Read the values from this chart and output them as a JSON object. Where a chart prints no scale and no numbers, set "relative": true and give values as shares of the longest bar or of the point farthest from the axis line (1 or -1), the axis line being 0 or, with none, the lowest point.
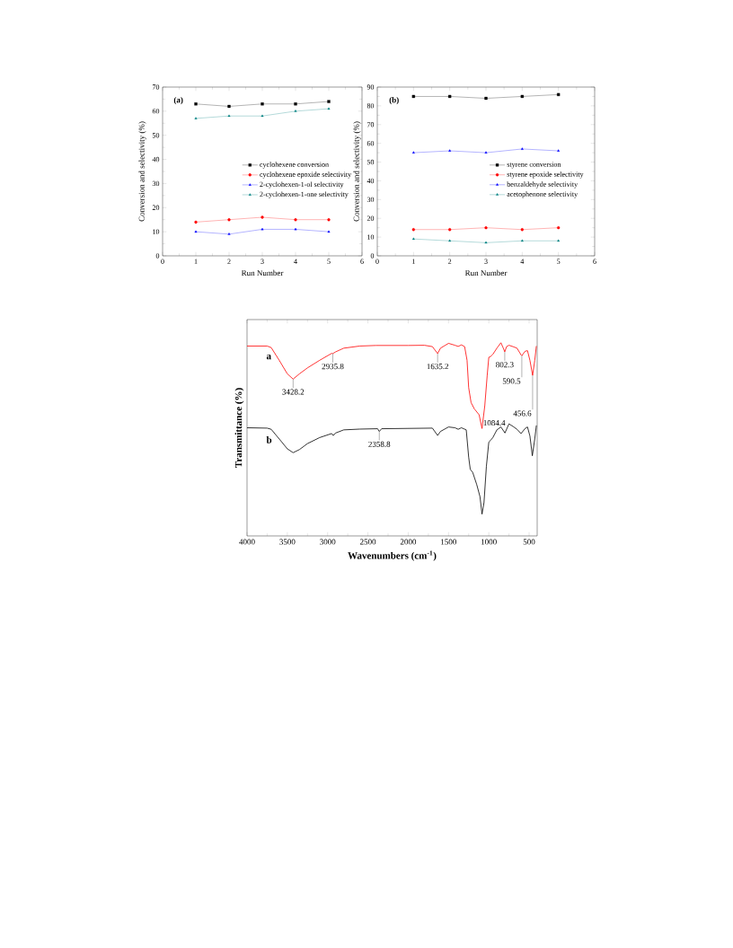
{
  "chart_data": [
    {
      "type": "line",
      "title": "(a)",
      "xlabel": "Run Number",
      "ylabel": "Conversion and selectivity (%)",
      "x": [
        1,
        2,
        3,
        4,
        5
      ],
      "xlim": [
        0,
        6
      ],
      "xticks": [
        0,
        1,
        2,
        3,
        4,
        5,
        6
      ],
      "ylim": [
        0,
        70
      ],
      "yticks": [
        0,
        10,
        20,
        30,
        40,
        50,
        60,
        70
      ],
      "legend": "right",
      "series": [
        {
          "name": "cyclohexene conversion",
          "color": "#000000",
          "marker": "square",
          "values": [
            63,
            62,
            63,
            63,
            64
          ]
        },
        {
          "name": "cyclohexene epoxide selectivity",
          "color": "#ff0000",
          "marker": "circle",
          "values": [
            14,
            15,
            16,
            15,
            15
          ]
        },
        {
          "name": "2-cyclohexen-1-ol selectivity",
          "color": "#0000ff",
          "marker": "triangle",
          "values": [
            10,
            9,
            11,
            11,
            10
          ]
        },
        {
          "name": "2-cyclohexen-1-one selectivity",
          "color": "#008080",
          "marker": "triangle",
          "values": [
            57,
            58,
            58,
            60,
            61
          ]
        }
      ]
    },
    {
      "type": "line",
      "title": "(b)",
      "xlabel": "Run Number",
      "ylabel": "Conversion and selectivity (%)",
      "x": [
        1,
        2,
        3,
        4,
        5
      ],
      "xlim": [
        0,
        6
      ],
      "xticks": [
        0,
        1,
        2,
        3,
        4,
        5,
        6
      ],
      "ylim": [
        0,
        90
      ],
      "yticks": [
        0,
        10,
        20,
        30,
        40,
        50,
        60,
        70,
        80,
        90
      ],
      "legend": "right",
      "series": [
        {
          "name": "styrene conversion",
          "color": "#000000",
          "marker": "square",
          "values": [
            85,
            85,
            84,
            85,
            86
          ]
        },
        {
          "name": "styrene epoxide selectivity",
          "color": "#ff0000",
          "marker": "circle",
          "values": [
            14,
            14,
            15,
            14,
            15
          ]
        },
        {
          "name": "benzaldehyde selectivity",
          "color": "#0000ff",
          "marker": "triangle",
          "values": [
            55,
            56,
            55,
            57,
            56
          ]
        },
        {
          "name": "acetophenone selectivity",
          "color": "#008080",
          "marker": "triangle",
          "values": [
            9,
            8,
            7,
            8,
            8
          ]
        }
      ]
    },
    {
      "type": "line",
      "relative": true,
      "xlabel": "Wavenumbers (cm$^{-1}$)",
      "ylabel": "Transmittance (%)",
      "xlim": [
        4000,
        400
      ],
      "xticks": [
        4000,
        3500,
        3000,
        2500,
        2000,
        1500,
        1000,
        500
      ],
      "series": [
        {
          "name": "a",
          "color": "#ff0000",
          "x": [
            4000,
            3750,
            3700,
            3600,
            3500,
            3428.2,
            3350,
            3250,
            3100,
            2950,
            2935.8,
            2900,
            2800,
            2600,
            2400,
            2000,
            1800,
            1700,
            1635.2,
            1600,
            1500,
            1420,
            1380,
            1340,
            1300,
            1270,
            1250,
            1220,
            1180,
            1120,
            1084.4,
            1050,
            1020,
            1000,
            980,
            950,
            900,
            850,
            820,
            802.3,
            780,
            750,
            700,
            650,
            600,
            590.5,
            550,
            520,
            490,
            456.6,
            430,
            410
          ],
          "values": [
            0.983,
            0.983,
            0.975,
            0.909,
            0.839,
            0.812,
            0.839,
            0.87,
            0.909,
            0.945,
            0.944,
            0.953,
            0.972,
            0.983,
            0.986,
            0.986,
            0.987,
            0.98,
            0.944,
            0.972,
            0.997,
            0.987,
            0.981,
            0.989,
            0.98,
            0.909,
            0.768,
            0.69,
            0.658,
            0.627,
            0.556,
            0.674,
            0.831,
            0.925,
            0.928,
            0.94,
            0.972,
            1.0,
            0.972,
            0.953,
            0.98,
            0.987,
            0.98,
            0.972,
            0.937,
            0.933,
            0.956,
            0.959,
            0.909,
            0.831,
            0.909,
            0.983
          ]
        },
        {
          "name": "b",
          "color": "#000000",
          "x": [
            4000,
            3750,
            3700,
            3600,
            3500,
            3428.2,
            3350,
            3250,
            3100,
            2950,
            2930,
            2900,
            2800,
            2600,
            2380,
            2358.8,
            2330,
            1700,
            1635.2,
            1600,
            1500,
            1420,
            1380,
            1340,
            1280,
            1250,
            1230,
            1200,
            1150,
            1110,
            1084.4,
            1060,
            1030,
            1000,
            980,
            950,
            900,
            850,
            800,
            750,
            700,
            650,
            600,
            550,
            520,
            490,
            460,
            430,
            410
          ],
          "values": [
            0.56,
            0.558,
            0.552,
            0.502,
            0.451,
            0.431,
            0.447,
            0.478,
            0.509,
            0.53,
            0.52,
            0.533,
            0.549,
            0.553,
            0.555,
            0.541,
            0.555,
            0.558,
            0.52,
            0.541,
            0.564,
            0.56,
            0.552,
            0.56,
            0.549,
            0.408,
            0.345,
            0.329,
            0.266,
            0.204,
            0.113,
            0.172,
            0.361,
            0.486,
            0.494,
            0.509,
            0.549,
            0.564,
            0.533,
            0.58,
            0.567,
            0.552,
            0.53,
            0.556,
            0.564,
            0.517,
            0.415,
            0.502,
            0.572
          ]
        }
      ],
      "annotations": [
        {
          "text": "3428.2",
          "x": 3428.2,
          "y": 0.812
        },
        {
          "text": "2935.8",
          "x": 2935.8,
          "y": 0.944
        },
        {
          "text": "2358.8",
          "x": 2358.8,
          "y": 0.541
        },
        {
          "text": "1635.2",
          "x": 1635.2,
          "y": 0.944
        },
        {
          "text": "1084.4",
          "x": 1084.4,
          "y": 0.556
        },
        {
          "text": "802.3",
          "x": 802.3,
          "y": 0.953
        },
        {
          "text": "590.5",
          "x": 590.5,
          "y": 0.933
        },
        {
          "text": "456.6",
          "x": 456.6,
          "y": 0.831
        }
      ]
    }
  ]
}
